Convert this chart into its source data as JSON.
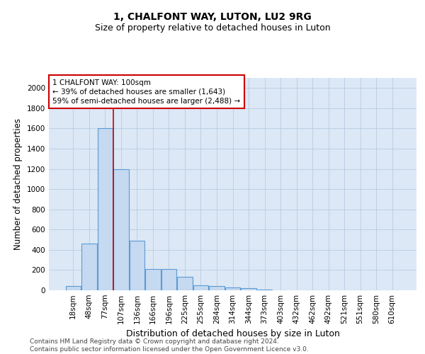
{
  "title": "1, CHALFONT WAY, LUTON, LU2 9RG",
  "subtitle": "Size of property relative to detached houses in Luton",
  "xlabel": "Distribution of detached houses by size in Luton",
  "ylabel": "Number of detached properties",
  "bar_labels": [
    "18sqm",
    "48sqm",
    "77sqm",
    "107sqm",
    "136sqm",
    "166sqm",
    "196sqm",
    "225sqm",
    "255sqm",
    "284sqm",
    "314sqm",
    "344sqm",
    "373sqm",
    "403sqm",
    "432sqm",
    "462sqm",
    "492sqm",
    "521sqm",
    "551sqm",
    "580sqm",
    "610sqm"
  ],
  "bar_values": [
    40,
    460,
    1600,
    1200,
    490,
    210,
    210,
    130,
    50,
    40,
    25,
    20,
    10,
    0,
    0,
    0,
    0,
    0,
    0,
    0,
    0
  ],
  "bar_color": "#c5d9f0",
  "bar_edge_color": "#5b9bd5",
  "vline_color": "#cc0000",
  "ylim": [
    0,
    2100
  ],
  "yticks": [
    0,
    200,
    400,
    600,
    800,
    1000,
    1200,
    1400,
    1600,
    1800,
    2000
  ],
  "annotation_line1": "1 CHALFONT WAY: 100sqm",
  "annotation_line2": "← 39% of detached houses are smaller (1,643)",
  "annotation_line3": "59% of semi-detached houses are larger (2,488) →",
  "annotation_box_color": "#ffffff",
  "annotation_box_edge": "#cc0000",
  "footer_text": "Contains HM Land Registry data © Crown copyright and database right 2024.\nContains public sector information licensed under the Open Government Licence v3.0.",
  "bg_color": "#ffffff",
  "axes_bg_color": "#dce8f5",
  "grid_color": "#b8cce4",
  "title_fontsize": 10,
  "subtitle_fontsize": 9,
  "axis_label_fontsize": 8.5,
  "tick_fontsize": 7.5,
  "footer_fontsize": 6.5
}
